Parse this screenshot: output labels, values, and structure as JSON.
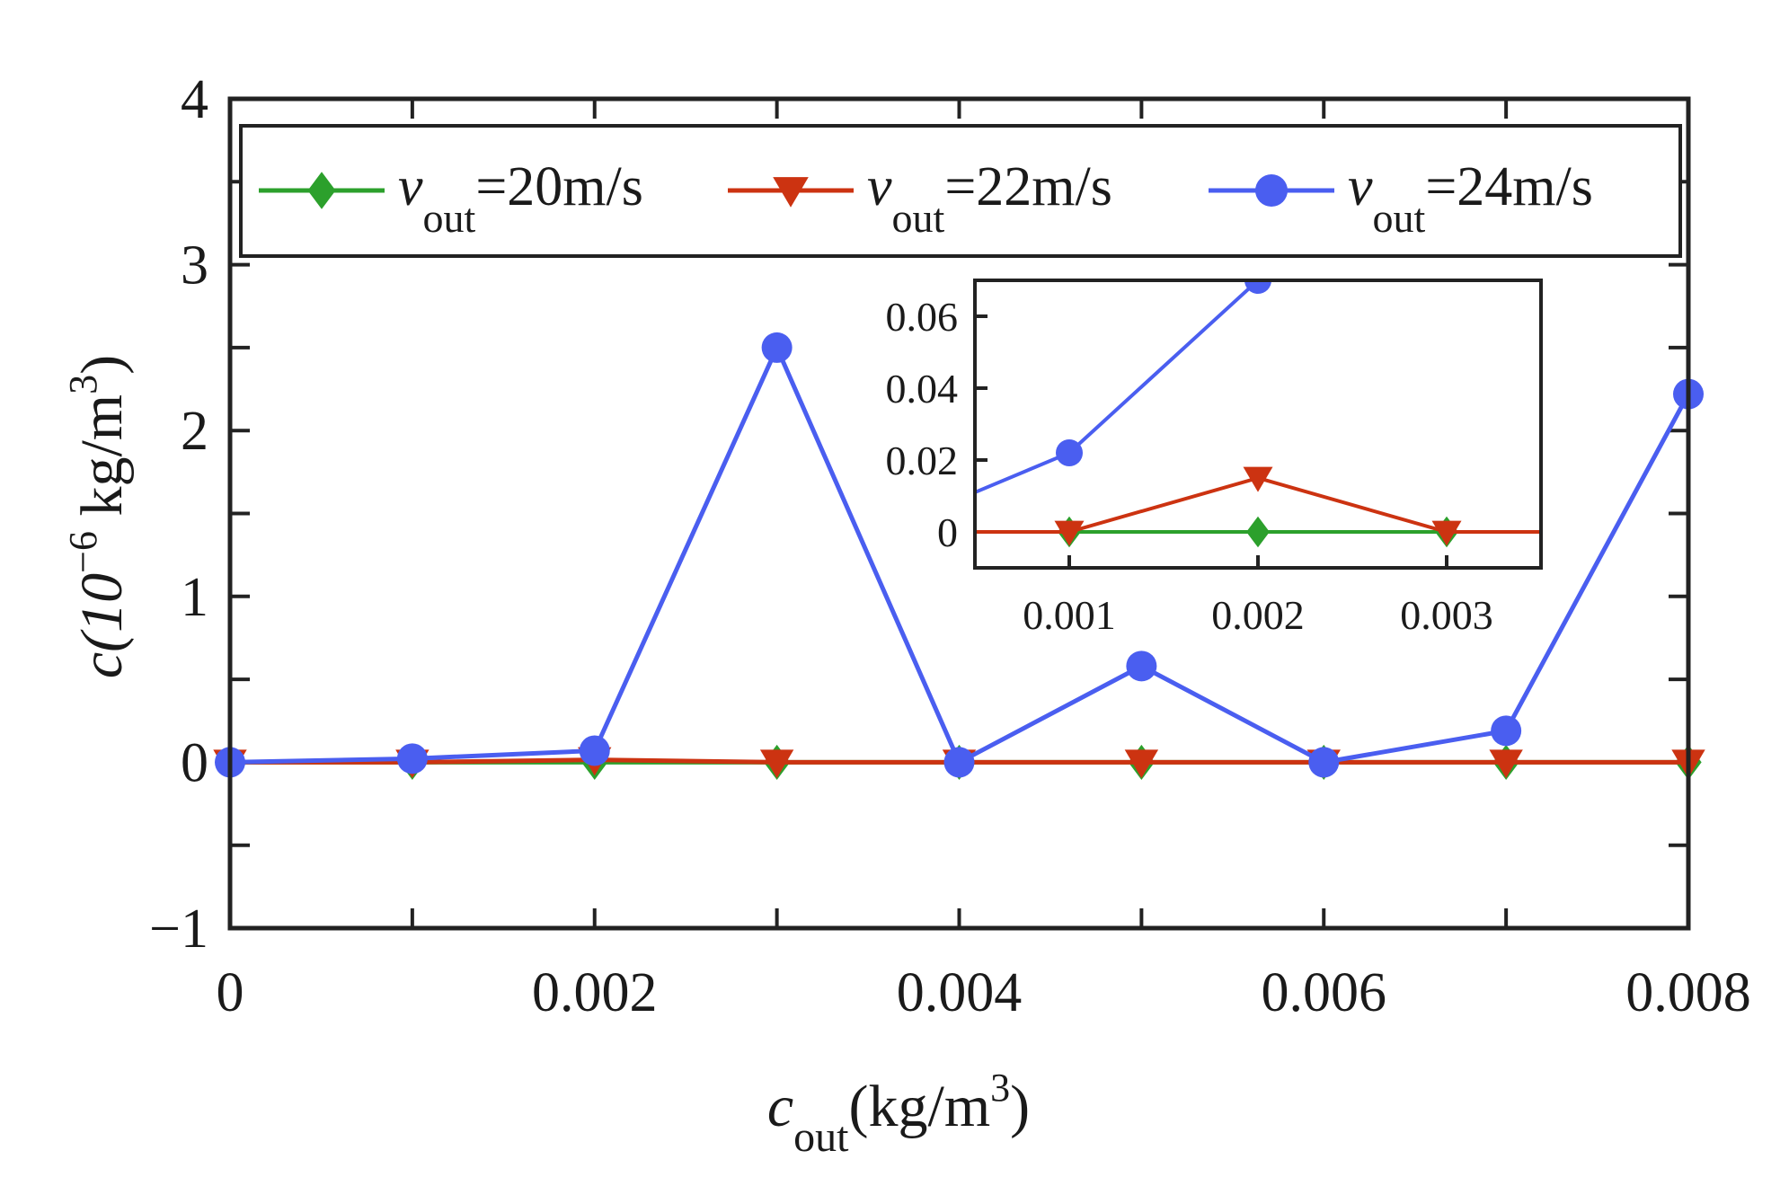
{
  "chart_data": {
    "type": "line",
    "xlabel": {
      "main": "c",
      "sub": "out",
      "unit": "(kg/m",
      "sup": "3",
      "close": ")"
    },
    "ylabel": {
      "main": "c(10",
      "sup": "−6",
      "unit": " kg/m",
      "sup2": "3",
      "close": ")"
    },
    "xlim": [
      0,
      0.008
    ],
    "ylim": [
      -1,
      4
    ],
    "xticks": [
      0,
      0.001,
      0.002,
      0.003,
      0.004,
      0.005,
      0.006,
      0.007,
      0.008
    ],
    "xtick_labels": [
      "0",
      "0.002",
      "0.004",
      "0.006",
      "0.008"
    ],
    "xtick_label_values": [
      0,
      0.002,
      0.004,
      0.006,
      0.008
    ],
    "yticks": [
      -1,
      -0.5,
      0,
      0.5,
      1,
      1.5,
      2,
      2.5,
      3,
      3.5,
      4
    ],
    "ytick_labels": [
      "−1",
      "0",
      "1",
      "2",
      "3",
      "4"
    ],
    "ytick_label_values": [
      -1,
      0,
      1,
      2,
      3,
      4
    ],
    "x": [
      0,
      0.001,
      0.002,
      0.003,
      0.004,
      0.005,
      0.006,
      0.007,
      0.008
    ],
    "series": [
      {
        "name": "v_out=20m/s",
        "label_main": "v",
        "label_sub": "out",
        "label_rest": "=20m/s",
        "color": "#2ca02c",
        "marker": "diamond",
        "values": [
          0,
          0,
          0,
          0,
          0,
          0,
          0,
          0,
          0
        ]
      },
      {
        "name": "v_out=22m/s",
        "label_main": "v",
        "label_sub": "out",
        "label_rest": "=22m/s",
        "color": "#cc3311",
        "marker": "triangle-down",
        "values": [
          0,
          0,
          0.015,
          0,
          0,
          0,
          0,
          0,
          0
        ]
      },
      {
        "name": "v_out=24m/s",
        "label_main": "v",
        "label_sub": "out",
        "label_rest": "=24m/s",
        "color": "#4a5ef0",
        "marker": "circle",
        "values": [
          0,
          0.022,
          0.07,
          2.5,
          0,
          0.58,
          0,
          0.19,
          2.22
        ]
      }
    ],
    "legend": "top",
    "inset": {
      "xlim": [
        0.0005,
        0.0035
      ],
      "ylim": [
        -0.01,
        0.07
      ],
      "xticks": [
        0.001,
        0.002,
        0.003
      ],
      "xtick_labels": [
        "0.001",
        "0.002",
        "0.003"
      ],
      "yticks": [
        0,
        0.02,
        0.04,
        0.06
      ],
      "ytick_labels": [
        "0",
        "0.02",
        "0.04",
        "0.06"
      ]
    }
  }
}
